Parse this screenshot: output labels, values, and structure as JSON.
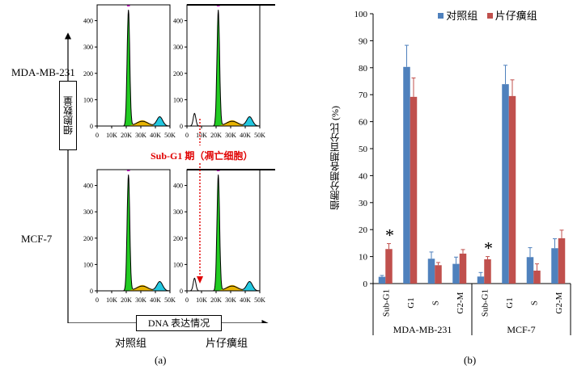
{
  "panel_a": {
    "caption": "(a)",
    "cell_lines": [
      "MDA-MB-231",
      "MCF-7"
    ],
    "y_axis_box": "细胞数量",
    "x_axis_box": "DNA 表达情况",
    "column_labels": [
      "对照组",
      "片仔癀组"
    ],
    "annotation": "Sub-G1 期（凋亡细胞）",
    "y_ticks": [
      "0",
      "100",
      "200",
      "300",
      "400"
    ],
    "x_ticks": [
      "0",
      "10K",
      "20K",
      "30K",
      "40K",
      "50K"
    ]
  },
  "panel_b": {
    "caption": "(b)",
    "star": "*",
    "colors": {
      "control": "#4f81bd",
      "treated": "#c0504d"
    }
  },
  "chart_data": {
    "type": "bar",
    "ylabel": "细胞分期各期百分比 (%)",
    "ylim": [
      0,
      100
    ],
    "y_ticks": [
      0,
      10,
      20,
      30,
      40,
      50,
      60,
      70,
      80,
      90,
      100
    ],
    "groups": [
      "MDA-MB-231",
      "MCF-7"
    ],
    "categories": [
      "Sub-G1",
      "G1",
      "S",
      "G2-M"
    ],
    "series": [
      {
        "name": "对照组",
        "values": [
          [
            2.5,
            80.3,
            9.2,
            7.3
          ],
          [
            2.6,
            73.9,
            9.8,
            13.1
          ]
        ],
        "errors": [
          [
            0.5,
            8.0,
            2.5,
            2.5
          ],
          [
            1.5,
            7.0,
            3.5,
            3.5
          ]
        ]
      },
      {
        "name": "片仔癀组",
        "values": [
          [
            12.8,
            69.2,
            6.8,
            11.1
          ],
          [
            9.0,
            69.5,
            4.8,
            16.8
          ]
        ],
        "errors": [
          [
            2.0,
            7.0,
            1.0,
            1.5
          ],
          [
            1.0,
            6.0,
            2.5,
            3.0
          ]
        ]
      }
    ],
    "significant": [
      [
        true,
        false,
        false,
        false
      ],
      [
        true,
        false,
        false,
        false
      ]
    ],
    "legend_position": "top"
  }
}
